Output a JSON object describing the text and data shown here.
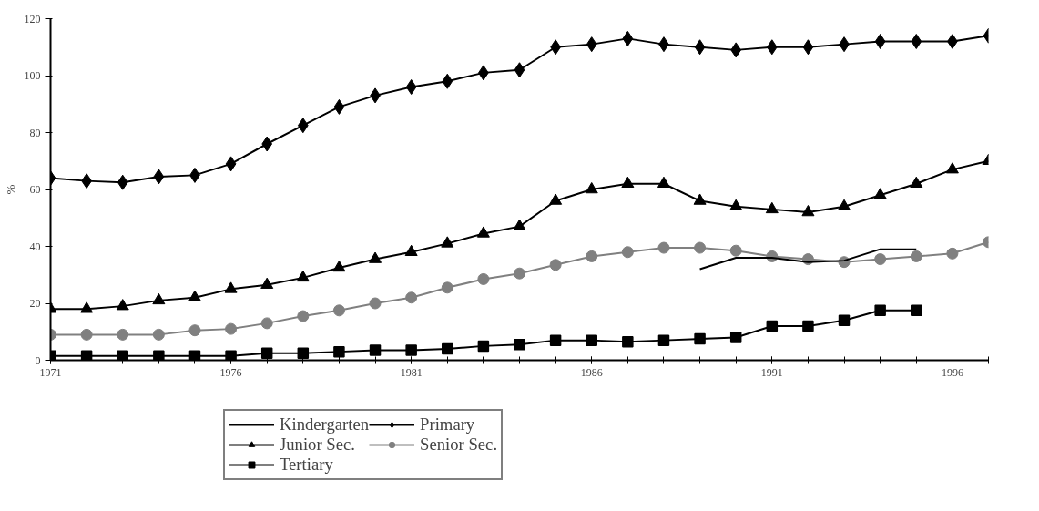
{
  "chart_data": {
    "type": "line",
    "ylabel": "%",
    "x": [
      1971,
      1972,
      1973,
      1974,
      1975,
      1976,
      1977,
      1978,
      1979,
      1980,
      1981,
      1982,
      1983,
      1984,
      1985,
      1986,
      1987,
      1988,
      1989,
      1990,
      1991,
      1992,
      1993,
      1994,
      1995,
      1996,
      1997
    ],
    "xlim": [
      1971,
      1997
    ],
    "xticks": [
      1971,
      1976,
      1981,
      1986,
      1991,
      1996
    ],
    "ylim": [
      0,
      120
    ],
    "yticks": [
      0,
      20,
      40,
      60,
      80,
      100,
      120
    ],
    "grid": false,
    "legend": "bottom",
    "series": [
      {
        "name": "Kindergarten",
        "color": "#000000",
        "marker": "none",
        "values": [
          null,
          null,
          null,
          null,
          null,
          null,
          null,
          null,
          null,
          null,
          null,
          null,
          null,
          null,
          null,
          null,
          null,
          null,
          32,
          36,
          36,
          34.5,
          35,
          39,
          39,
          null,
          null
        ]
      },
      {
        "name": "Primary",
        "color": "#000000",
        "marker": "diamond",
        "values": [
          64,
          63,
          62.5,
          64.5,
          65,
          69,
          76,
          82.5,
          89,
          93,
          96,
          98,
          101,
          102,
          110,
          111,
          113,
          111,
          110,
          109,
          110,
          110,
          111,
          112,
          112,
          112,
          114
        ]
      },
      {
        "name": "Junior Sec.",
        "color": "#000000",
        "marker": "triangle",
        "values": [
          18,
          18,
          19,
          21,
          22,
          25,
          26.5,
          29,
          32.5,
          35.5,
          38,
          41,
          44.5,
          47,
          56,
          60,
          62,
          62,
          56,
          54,
          53,
          52,
          54,
          58,
          62,
          67,
          70
        ]
      },
      {
        "name": "Senior Sec.",
        "color": "#808080",
        "marker": "circle",
        "values": [
          9,
          9,
          9,
          9,
          10.5,
          11,
          13,
          15.5,
          17.5,
          20,
          22,
          25.5,
          28.5,
          30.5,
          33.5,
          36.5,
          38,
          39.5,
          39.5,
          38.5,
          36.5,
          35.5,
          34.5,
          35.5,
          36.5,
          37.5,
          41.5
        ]
      },
      {
        "name": "Tertiary",
        "color": "#000000",
        "marker": "square",
        "values": [
          1.5,
          1.5,
          1.5,
          1.5,
          1.5,
          1.5,
          2.5,
          2.5,
          3,
          3.5,
          3.5,
          4,
          5,
          5.5,
          7,
          7,
          6.5,
          7,
          7.5,
          8,
          12,
          12,
          14,
          17.5,
          17.5,
          null,
          null
        ]
      }
    ]
  }
}
